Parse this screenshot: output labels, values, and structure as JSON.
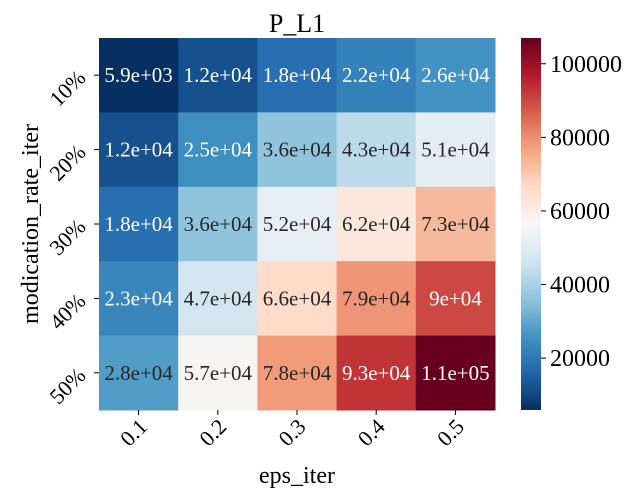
{
  "chart_data": {
    "type": "heatmap",
    "title": "P_L1",
    "xlabel": "eps_iter",
    "ylabel": "modication_rate_iter",
    "x_categories": [
      "0.1",
      "0.2",
      "0.3",
      "0.4",
      "0.5"
    ],
    "y_categories": [
      "10%",
      "20%",
      "30%",
      "40%",
      "50%"
    ],
    "values": [
      [
        5900,
        12000,
        18000,
        22000,
        26000
      ],
      [
        12000,
        25000,
        36000,
        43000,
        51000
      ],
      [
        18000,
        36000,
        52000,
        62000,
        73000
      ],
      [
        23000,
        47000,
        66000,
        79000,
        90000
      ],
      [
        28000,
        57000,
        78000,
        93000,
        110000
      ]
    ],
    "annotations": [
      [
        "5.9e+03",
        "1.2e+04",
        "1.8e+04",
        "2.2e+04",
        "2.6e+04"
      ],
      [
        "1.2e+04",
        "2.5e+04",
        "3.6e+04",
        "4.3e+04",
        "5.1e+04"
      ],
      [
        "1.8e+04",
        "3.6e+04",
        "5.2e+04",
        "6.2e+04",
        "7.3e+04"
      ],
      [
        "2.3e+04",
        "4.7e+04",
        "6.6e+04",
        "7.9e+04",
        "9e+04"
      ],
      [
        "2.8e+04",
        "5.7e+04",
        "7.8e+04",
        "9.3e+04",
        "1.1e+05"
      ]
    ],
    "colormap": "RdBu_r",
    "vmin": 5900,
    "vmax": 107000,
    "colorbar_ticks": [
      20000,
      40000,
      60000,
      80000,
      100000
    ],
    "colorbar_tick_labels": [
      "20000",
      "40000",
      "60000",
      "80000",
      "100000"
    ]
  }
}
